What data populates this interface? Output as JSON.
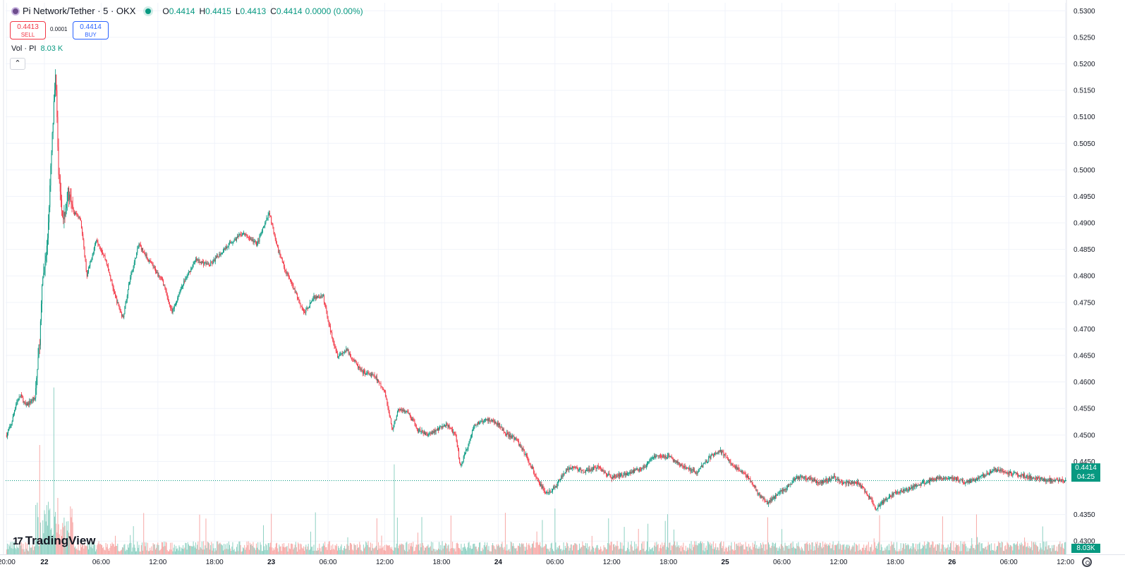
{
  "header": {
    "symbol": "Pi Network/Tether · 5 · OKX",
    "ohlc": {
      "o_label": "O",
      "o": "0.4414",
      "h_label": "H",
      "h": "0.4415",
      "l_label": "L",
      "l": "0.4413",
      "c_label": "C",
      "c": "0.4414",
      "change": "0.0000 (0.00%)"
    },
    "sell": {
      "price": "0.4413",
      "label": "SELL"
    },
    "buy": {
      "price": "0.4414",
      "label": "BUY"
    },
    "spread": "0.0001",
    "volume": {
      "label": "Vol · PI",
      "value": "8.03 K"
    },
    "collapse_icon": "chevron-up-icon",
    "logo_mark": "17",
    "logo_text": "TradingView"
  },
  "colors": {
    "up": "#089981",
    "down": "#f23645",
    "up_vol": "#8fd1c3",
    "down_vol": "#f7a9a7",
    "grid": "#f0f3fa",
    "axis_text": "#131722"
  },
  "chart_data": {
    "type": "candlestick",
    "symbol": "PI/USDT",
    "interval": "5",
    "exchange": "OKX",
    "x_tick_labels": [
      "20:00",
      "22",
      "06:00",
      "12:00",
      "18:00",
      "23",
      "06:00",
      "12:00",
      "18:00",
      "24",
      "06:00",
      "12:00",
      "18:00",
      "25",
      "06:00",
      "12:00",
      "18:00",
      "26",
      "06:00",
      "12:00"
    ],
    "x_tick_hours": [
      20,
      24,
      30,
      36,
      42,
      48,
      54,
      60,
      66,
      72,
      78,
      84,
      90,
      96,
      102,
      108,
      114,
      120,
      126,
      132
    ],
    "y_tick_labels": [
      "0.5300",
      "0.5250",
      "0.5200",
      "0.5150",
      "0.5100",
      "0.5050",
      "0.5000",
      "0.4950",
      "0.4900",
      "0.4850",
      "0.4800",
      "0.4750",
      "0.4700",
      "0.4650",
      "0.4600",
      "0.4550",
      "0.4500",
      "0.4450",
      "0.4350",
      "0.4300"
    ],
    "y_range": [
      0.4275,
      0.5315
    ],
    "x_range_hours": [
      19.9,
      132.1
    ],
    "last_price": "0.4414",
    "countdown": "04:25",
    "last_volume": "8.03K",
    "grid": true,
    "price_path": [
      [
        20.0,
        0.45
      ],
      [
        20.5,
        0.452
      ],
      [
        21.0,
        0.456
      ],
      [
        21.5,
        0.4575
      ],
      [
        22.0,
        0.4555
      ],
      [
        23.0,
        0.457
      ],
      [
        23.5,
        0.468
      ],
      [
        23.8,
        0.479
      ],
      [
        24.3,
        0.486
      ],
      [
        24.8,
        0.505
      ],
      [
        25.2,
        0.519
      ],
      [
        25.5,
        0.5
      ],
      [
        26.0,
        0.49
      ],
      [
        26.5,
        0.496
      ],
      [
        27.0,
        0.492
      ],
      [
        27.8,
        0.491
      ],
      [
        28.5,
        0.48
      ],
      [
        29.5,
        0.487
      ],
      [
        30.5,
        0.483
      ],
      [
        31.5,
        0.476
      ],
      [
        32.3,
        0.472
      ],
      [
        33.0,
        0.479
      ],
      [
        34.0,
        0.486
      ],
      [
        35.0,
        0.483
      ],
      [
        36.5,
        0.479
      ],
      [
        37.5,
        0.473
      ],
      [
        38.5,
        0.478
      ],
      [
        40.0,
        0.483
      ],
      [
        41.5,
        0.482
      ],
      [
        43.5,
        0.486
      ],
      [
        45.0,
        0.488
      ],
      [
        46.5,
        0.486
      ],
      [
        47.8,
        0.492
      ],
      [
        48.5,
        0.486
      ],
      [
        49.5,
        0.481
      ],
      [
        50.5,
        0.477
      ],
      [
        51.5,
        0.473
      ],
      [
        52.5,
        0.476
      ],
      [
        53.5,
        0.476
      ],
      [
        54.2,
        0.47
      ],
      [
        55.0,
        0.465
      ],
      [
        56.0,
        0.466
      ],
      [
        57.5,
        0.462
      ],
      [
        59.0,
        0.461
      ],
      [
        60.0,
        0.458
      ],
      [
        60.8,
        0.451
      ],
      [
        61.5,
        0.455
      ],
      [
        62.5,
        0.454
      ],
      [
        63.5,
        0.451
      ],
      [
        64.5,
        0.45
      ],
      [
        65.5,
        0.451
      ],
      [
        66.5,
        0.452
      ],
      [
        67.5,
        0.45
      ],
      [
        68.0,
        0.444
      ],
      [
        68.8,
        0.448
      ],
      [
        69.5,
        0.452
      ],
      [
        71.0,
        0.453
      ],
      [
        72.0,
        0.452
      ],
      [
        73.0,
        0.45
      ],
      [
        74.0,
        0.449
      ],
      [
        75.0,
        0.446
      ],
      [
        76.0,
        0.442
      ],
      [
        77.0,
        0.439
      ],
      [
        78.0,
        0.44
      ],
      [
        79.0,
        0.443
      ],
      [
        80.0,
        0.444
      ],
      [
        81.0,
        0.443
      ],
      [
        82.5,
        0.444
      ],
      [
        84.0,
        0.442
      ],
      [
        86.0,
        0.443
      ],
      [
        87.5,
        0.444
      ],
      [
        88.5,
        0.446
      ],
      [
        90.0,
        0.446
      ],
      [
        91.5,
        0.444
      ],
      [
        93.0,
        0.443
      ],
      [
        94.5,
        0.446
      ],
      [
        95.5,
        0.447
      ],
      [
        97.0,
        0.444
      ],
      [
        98.5,
        0.442
      ],
      [
        99.5,
        0.439
      ],
      [
        100.5,
        0.437
      ],
      [
        101.5,
        0.439
      ],
      [
        102.5,
        0.44
      ],
      [
        103.5,
        0.442
      ],
      [
        104.5,
        0.442
      ],
      [
        106.0,
        0.441
      ],
      [
        107.5,
        0.442
      ],
      [
        108.5,
        0.441
      ],
      [
        110.0,
        0.441
      ],
      [
        111.0,
        0.439
      ],
      [
        112.0,
        0.436
      ],
      [
        113.0,
        0.438
      ],
      [
        114.0,
        0.439
      ],
      [
        115.5,
        0.44
      ],
      [
        117.0,
        0.441
      ],
      [
        118.5,
        0.442
      ],
      [
        120.0,
        0.442
      ],
      [
        121.5,
        0.441
      ],
      [
        123.0,
        0.442
      ],
      [
        124.5,
        0.4435
      ],
      [
        125.5,
        0.443
      ],
      [
        127.0,
        0.4425
      ],
      [
        128.5,
        0.442
      ],
      [
        130.0,
        0.4415
      ],
      [
        132.0,
        0.4414
      ]
    ],
    "volume_axis_max": 8000,
    "volume_spikes": [
      [
        23.1,
        2800
      ],
      [
        23.5,
        6200
      ],
      [
        24.0,
        2500
      ],
      [
        25.0,
        8000
      ],
      [
        25.4,
        3200
      ],
      [
        61.0,
        5100
      ],
      [
        67.0,
        2200
      ],
      [
        48.0,
        2300
      ],
      [
        78.0,
        2600
      ],
      [
        100.5,
        2100
      ]
    ]
  }
}
